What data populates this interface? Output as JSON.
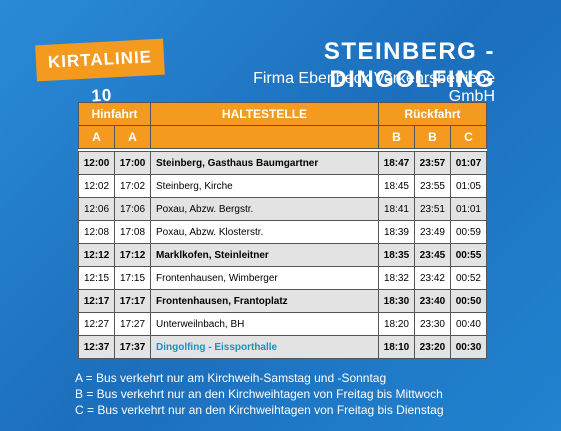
{
  "header": {
    "badge": "KIRTALINIE 10",
    "title": "STEINBERG - DINGOLFING",
    "subtitle": "Firma Ebenbeck Verkehrsbetriebe GmbH"
  },
  "table": {
    "groups": [
      "Hinfahrt",
      "HALTESTELLE",
      "Rückfahrt"
    ],
    "subheaders": [
      "A",
      "A",
      "B",
      "B",
      "C"
    ],
    "rows": [
      {
        "cells": [
          "12:00",
          "17:00",
          "Steinberg, Gasthaus Baumgartner",
          "18:47",
          "23:57",
          "01:07"
        ],
        "bold": true
      },
      {
        "cells": [
          "12:02",
          "17:02",
          "Steinberg, Kirche",
          "18:45",
          "23:55",
          "01:05"
        ],
        "bold": false
      },
      {
        "cells": [
          "12:06",
          "17:06",
          "Poxau, Abzw. Bergstr.",
          "18:41",
          "23:51",
          "01:01"
        ],
        "bold": false
      },
      {
        "cells": [
          "12:08",
          "17:08",
          "Poxau, Abzw. Klosterstr.",
          "18:39",
          "23:49",
          "00:59"
        ],
        "bold": false
      },
      {
        "cells": [
          "12:12",
          "17:12",
          "Marklkofen, Steinleitner",
          "18:35",
          "23:45",
          "00:55"
        ],
        "bold": true
      },
      {
        "cells": [
          "12:15",
          "17:15",
          "Frontenhausen, Wimberger",
          "18:32",
          "23:42",
          "00:52"
        ],
        "bold": false
      },
      {
        "cells": [
          "12:17",
          "17:17",
          "Frontenhausen, Frantoplatz",
          "18:30",
          "23:40",
          "00:50"
        ],
        "bold": true
      },
      {
        "cells": [
          "12:27",
          "17:27",
          "Unterweilnbach, BH",
          "18:20",
          "23:30",
          "00:40"
        ],
        "bold": false
      },
      {
        "cells": [
          "12:37",
          "17:37",
          "Dingolfing - Eissporthalle",
          "18:10",
          "23:20",
          "00:30"
        ],
        "bold": true
      }
    ]
  },
  "notes": [
    "A = Bus verkehrt nur am Kirchweih-Samstag und -Sonntag",
    "B = Bus verkehrt nur an den Kirchweihtagen von Freitag bis Mittwoch",
    "C = Bus verkehrt nur an den Kirchweihtagen von Freitag bis Dienstag"
  ]
}
